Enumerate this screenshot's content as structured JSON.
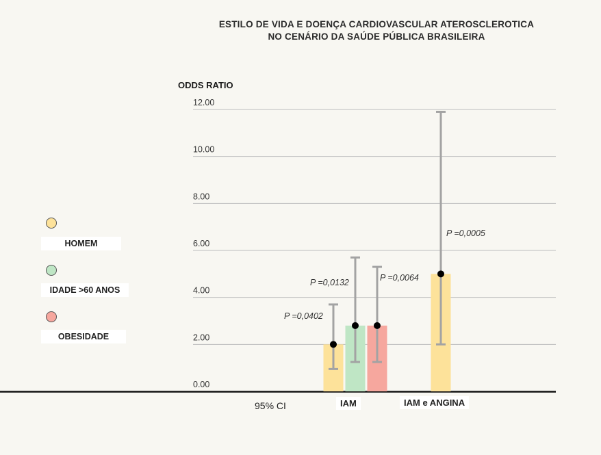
{
  "chart_data": {
    "type": "bar",
    "title_line1": "ESTILO DE VIDA E DOENÇA CARDIOVASCULAR ATEROSCLEROTICA",
    "title_line2": "NO CENÁRIO DA SAÚDE PÚBLICA BRASILEIRA",
    "ylabel": "ODDS RATIO",
    "ylim": [
      0,
      12
    ],
    "yticks": [
      "0.00",
      "2.00",
      "4.00",
      "6.00",
      "8.00",
      "10.00",
      "12.00"
    ],
    "ytick_values": [
      0,
      2,
      4,
      6,
      8,
      10,
      12
    ],
    "grid": true,
    "legend_position": "left",
    "legend": [
      {
        "label": "HOMEM",
        "color": "#fde29a"
      },
      {
        "label": "IDADE >60 ANOS",
        "color": "#bfe6c5"
      },
      {
        "label": "OBESIDADE",
        "color": "#f6a79e"
      }
    ],
    "groups": [
      {
        "label": "IAM"
      },
      {
        "label": "IAM e ANGINA"
      }
    ],
    "ci_label": "95% CI",
    "bars": [
      {
        "group": 0,
        "series": "HOMEM",
        "color": "#fde29a",
        "value": 2.0,
        "ci_low": 0.95,
        "ci_high": 3.7,
        "pvalue": "P =0,0402"
      },
      {
        "group": 0,
        "series": "IDADE >60 ANOS",
        "color": "#bfe6c5",
        "value": 2.8,
        "ci_low": 1.25,
        "ci_high": 5.7,
        "pvalue": "P =0,0132"
      },
      {
        "group": 0,
        "series": "OBESIDADE",
        "color": "#f6a79e",
        "value": 2.8,
        "ci_low": 1.25,
        "ci_high": 5.3,
        "pvalue": "P =0,0064"
      },
      {
        "group": 1,
        "series": "HOMEM",
        "color": "#fde29a",
        "value": 5.0,
        "ci_low": 2.0,
        "ci_high": 11.9,
        "pvalue": "P =0,0005"
      }
    ]
  }
}
